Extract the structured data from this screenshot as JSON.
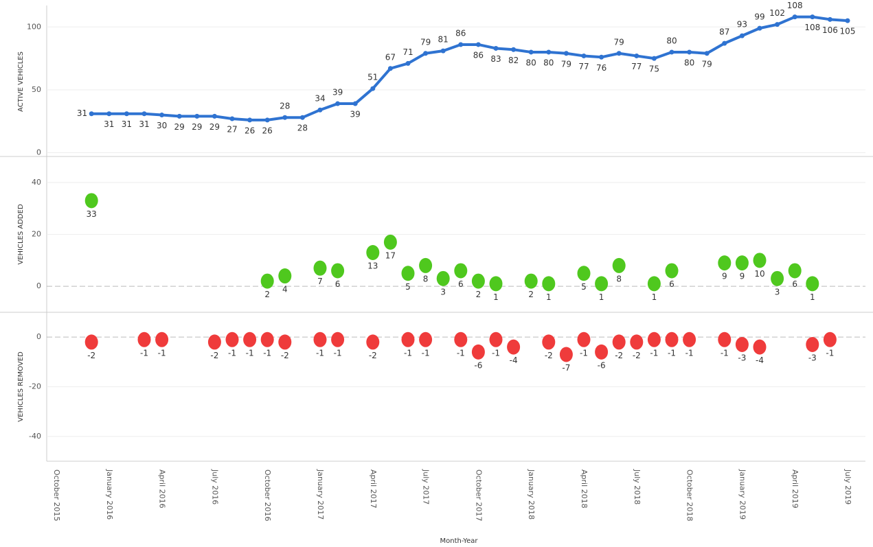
{
  "chart_data": [
    {
      "type": "line",
      "y_label": "ACTIVE VEHICLES",
      "color": "#2f73d1",
      "values": [
        null,
        null,
        31,
        31,
        31,
        31,
        30,
        29,
        29,
        29,
        27,
        26,
        26,
        28,
        28,
        34,
        39,
        39,
        51,
        67,
        71,
        79,
        81,
        86,
        86,
        83,
        82,
        80,
        80,
        79,
        77,
        76,
        79,
        77,
        75,
        80,
        80,
        79,
        87,
        93,
        99,
        102,
        108,
        108,
        106,
        105
      ],
      "ylim": [
        -3,
        116
      ],
      "yticks": [
        0,
        50,
        100
      ],
      "grid": true
    },
    {
      "type": "scatter",
      "y_label": "VEHICLES ADDED",
      "color": "#4fc81e",
      "values": [
        null,
        null,
        33,
        null,
        null,
        null,
        null,
        null,
        null,
        null,
        null,
        null,
        2,
        4,
        null,
        7,
        6,
        null,
        13,
        17,
        5,
        8,
        3,
        6,
        2,
        1,
        null,
        2,
        1,
        null,
        5,
        1,
        8,
        null,
        1,
        6,
        null,
        null,
        9,
        9,
        10,
        3,
        6,
        1,
        null,
        null
      ],
      "ylim": [
        -10,
        50
      ],
      "yticks": [
        0,
        20,
        40
      ],
      "grid": true,
      "zero_line": true
    },
    {
      "type": "scatter",
      "y_label": "VEHICLES REMOVED",
      "color": "#ef3b3b",
      "values": [
        null,
        null,
        -2,
        null,
        null,
        -1,
        -1,
        null,
        null,
        -2,
        -1,
        -1,
        -1,
        -2,
        null,
        -1,
        -1,
        null,
        -2,
        null,
        -1,
        -1,
        null,
        -1,
        -6,
        -1,
        -4,
        null,
        -2,
        -7,
        -1,
        -6,
        -2,
        -2,
        -1,
        -1,
        -1,
        null,
        -1,
        -3,
        -4,
        null,
        null,
        -3,
        -1,
        null
      ],
      "ylim": [
        -50,
        10
      ],
      "yticks": [
        -40,
        -20,
        0
      ],
      "grid": true,
      "zero_line": true,
      "x_label": "Month-Year",
      "categories": [
        "October 2015",
        null,
        null,
        "January 2016",
        null,
        null,
        "April 2016",
        null,
        null,
        "July 2016",
        null,
        null,
        "October 2016",
        null,
        null,
        "January 2017",
        null,
        null,
        "April 2017",
        null,
        null,
        "July 2017",
        null,
        null,
        "October 2017",
        null,
        null,
        "January 2018",
        null,
        null,
        "April 2018",
        null,
        null,
        "July 2018",
        null,
        null,
        "October 2018",
        null,
        null,
        "January 2019",
        null,
        null,
        "April 2019",
        null,
        null,
        "July 2019"
      ]
    }
  ]
}
